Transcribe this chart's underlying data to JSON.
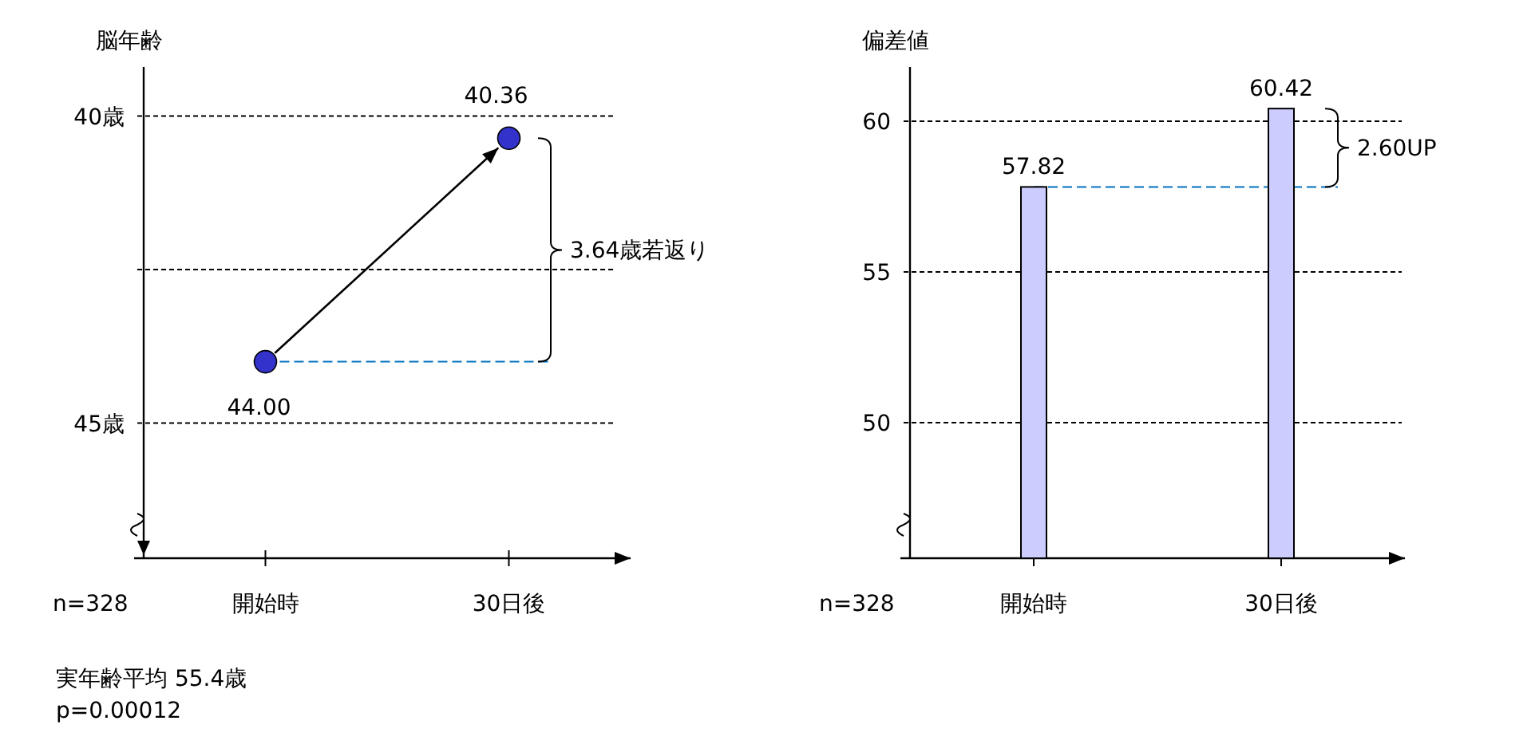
{
  "chart_data": [
    {
      "type": "scatter",
      "ylabel": "脳年齢",
      "categories": [
        "開始時",
        "30日後"
      ],
      "series": [
        {
          "color": "#000000",
          "colors": [
            "#3333cc",
            "#3333cc"
          ],
          "values": [
            44.0,
            40.36
          ],
          "value_labels": [
            "44.00",
            "40.36"
          ]
        }
      ],
      "marker": "circle",
      "ylim": [
        47.2,
        39.2
      ],
      "yticks": [
        {
          "value": 40,
          "label": "40歳"
        },
        {
          "value": 42.5,
          "label": null
        },
        {
          "value": 45,
          "label": "45歳"
        }
      ],
      "grid": "y",
      "ref_lines": [
        {
          "axis": "y",
          "value": 44,
          "color": "#0070c0",
          "line_style": "dashed"
        }
      ],
      "annotations": [
        "3.64歳若返り",
        "n=328",
        "実年齢平均 55.4歳",
        "p=0.00012"
      ]
    },
    {
      "type": "bar",
      "ylabel": "偏差値",
      "categories": [
        "開始時",
        "30日後"
      ],
      "series": [
        {
          "color": "#ccccff",
          "values": [
            57.82,
            60.42
          ]
        }
      ],
      "data_labels": true,
      "ylim": [
        45.5,
        61.8
      ],
      "yticks": [
        50,
        55,
        60
      ],
      "grid": "y",
      "ref_lines": [
        {
          "axis": "y",
          "value": 57.82,
          "color": "#0070c0",
          "line_style": "dashed"
        }
      ],
      "annotations": [
        "2.60UP",
        "n=328"
      ]
    }
  ]
}
